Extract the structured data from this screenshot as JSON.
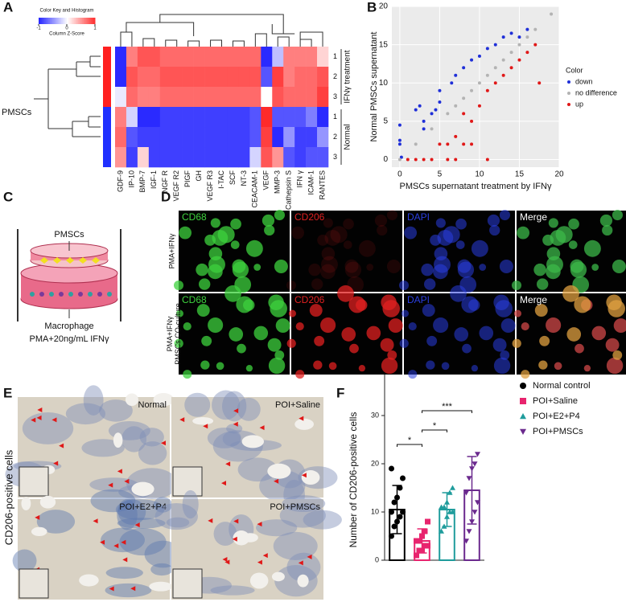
{
  "figure": {
    "panel_labels": [
      "A",
      "B",
      "C",
      "D",
      "E",
      "F"
    ]
  },
  "panel_c": {
    "top_label": "PMSCs",
    "bottom_label": "Macrophage",
    "condition": "PMA+20ng/mL IFNγ"
  },
  "panel_d": {
    "channels": [
      "CD68",
      "CD206",
      "DAPI",
      "Merge"
    ],
    "rows": [
      "PMA+IFNγ",
      "PMA+IFNγ PMSCs CO-culture"
    ]
  },
  "panel_e": {
    "ylabel": "CD206-positive cells",
    "groups": [
      "Normal",
      "POI+Saline",
      "POI+E2+P4",
      "POI+PMSCs"
    ]
  },
  "chart_data": [
    {
      "type": "heatmap",
      "title": "Color Key and Histogram",
      "colorbar_label": "Column Z-Score",
      "colorbar_ticks": [
        -1,
        0,
        1
      ],
      "colorscale": [
        "#2a2aff",
        "#ffffff",
        "#ff2a2a"
      ],
      "side_label": "PMSCs",
      "row_groups": [
        "IFNγ treatment",
        "Normal"
      ],
      "group_colors": [
        "#ff2020",
        "#2030ff"
      ],
      "rows": [
        "1",
        "2",
        "3",
        "1",
        "2",
        "3"
      ],
      "columns": [
        "GDF-9",
        "IP-10",
        "BMP-7",
        "IGF-1",
        "NGF R",
        "VEGF R2",
        "PIGF",
        "GH",
        "VEGF R3",
        "I-TAC",
        "SCF",
        "NT-3",
        "CEACAM-1",
        "VEGF",
        "MMP-3",
        "Cathepsin S",
        "IFN γ",
        "ICAM-1",
        "RANTES"
      ],
      "values": [
        [
          -1,
          0.6,
          0.8,
          0.8,
          0.7,
          0.7,
          0.7,
          0.7,
          0.7,
          0.7,
          0.7,
          0.7,
          0.7,
          -1,
          -0.3,
          0.6,
          0.6,
          0.6,
          0.2
        ],
        [
          -1,
          0.8,
          0.7,
          0.7,
          0.8,
          0.8,
          0.8,
          0.8,
          0.8,
          0.8,
          0.8,
          0.8,
          0.8,
          -0.8,
          0.9,
          0.6,
          0.7,
          0.7,
          0.8
        ],
        [
          -0.1,
          0.7,
          0.6,
          0.6,
          0.7,
          0.7,
          0.7,
          0.7,
          0.7,
          0.7,
          0.7,
          0.7,
          0.7,
          0,
          0.8,
          0.7,
          0.7,
          0.7,
          0.9
        ],
        [
          0.6,
          -0.2,
          -1,
          -1,
          -0.9,
          -0.9,
          -0.9,
          -0.9,
          -0.9,
          -0.9,
          -0.9,
          -0.9,
          -0.8,
          1,
          -0.8,
          -0.8,
          -0.8,
          -0.6,
          -1
        ],
        [
          0.7,
          -0.8,
          -0.9,
          -0.9,
          -0.9,
          -0.9,
          -0.9,
          -0.9,
          -0.9,
          -0.9,
          -0.9,
          -0.9,
          -0.8,
          0.9,
          -1,
          -0.5,
          -0.9,
          -0.9,
          -0.5
        ],
        [
          0.5,
          -0.9,
          0.2,
          -0.9,
          -0.9,
          -0.9,
          -0.9,
          -0.9,
          -0.9,
          -0.9,
          -0.9,
          -0.9,
          -0.2,
          0.8,
          0.5,
          -0.8,
          -0.9,
          -0.8,
          -0.8
        ]
      ]
    },
    {
      "type": "scatter",
      "xlabel": "PMSCs supernatant treatment by IFNγ",
      "ylabel": "Normal PMSCs supernatant",
      "xlim": [
        -1,
        20
      ],
      "ylim": [
        -1,
        20
      ],
      "xticks": [
        0,
        5,
        10,
        15,
        20
      ],
      "yticks": [
        0,
        5,
        10,
        15,
        20
      ],
      "grid": true,
      "background": "#ebebeb",
      "legend_title": "Color",
      "legend_position": "right",
      "series": [
        {
          "name": "down",
          "color": "#1f2fd8",
          "x": [
            0,
            0,
            0,
            0.2,
            2,
            2.5,
            3,
            4.5,
            5,
            6.5,
            7,
            8,
            9,
            10,
            11,
            12,
            13,
            14,
            15,
            16,
            3,
            5,
            4
          ],
          "y": [
            2,
            4.5,
            2.5,
            0.3,
            6.5,
            7,
            5,
            6.5,
            7.5,
            10,
            11,
            12,
            13,
            13.5,
            14.5,
            15,
            16,
            16.5,
            16,
            17,
            4,
            9,
            6
          ]
        },
        {
          "name": "no difference",
          "color": "#b3b3b3",
          "x": [
            0,
            2,
            4,
            6,
            7,
            8,
            9,
            10,
            11,
            12,
            13,
            14,
            15,
            16,
            17,
            19
          ],
          "y": [
            0,
            2,
            4,
            6,
            7,
            8,
            9,
            10,
            11,
            12,
            13,
            14,
            15,
            16,
            17,
            19
          ]
        },
        {
          "name": "up",
          "color": "#e01818",
          "x": [
            1,
            2,
            3,
            4,
            5,
            6,
            7,
            8,
            8,
            9,
            10,
            11,
            12,
            13,
            14,
            15,
            16,
            17,
            17.5,
            7,
            6,
            9,
            11
          ],
          "y": [
            0,
            0,
            0,
            0,
            2,
            2,
            3,
            2,
            6,
            5,
            7,
            9,
            10,
            11,
            12,
            13,
            14,
            15,
            10,
            0,
            0,
            2,
            0
          ]
        }
      ]
    },
    {
      "type": "bar",
      "ylabel": "Number of CD206-positive cells",
      "ylim": [
        0,
        40
      ],
      "yticks": [
        0,
        10,
        20,
        30,
        40
      ],
      "categories": [
        "Normal control",
        "POI+Saline",
        "POI+E2+P4",
        "POI+PMSCs"
      ],
      "colors": [
        "#000000",
        "#e8246e",
        "#1f9c9c",
        "#6b2a8e"
      ],
      "markers": [
        "circle",
        "square",
        "triangle",
        "triangle-down"
      ],
      "values": [
        10.5,
        4,
        10.5,
        14.5
      ],
      "errors": [
        5,
        2.5,
        3.5,
        7
      ],
      "points": [
        [
          5,
          7,
          8,
          9,
          10,
          10,
          12,
          13,
          15,
          17,
          19
        ],
        [
          1,
          2,
          2,
          3,
          3,
          4,
          4,
          5,
          6,
          8
        ],
        [
          6,
          7,
          9,
          10,
          10,
          11,
          11,
          12,
          14,
          15
        ],
        [
          4,
          6,
          8,
          10,
          12,
          14,
          17,
          19,
          20,
          22
        ]
      ],
      "annotations": [
        "*",
        "*",
        "***"
      ]
    }
  ]
}
